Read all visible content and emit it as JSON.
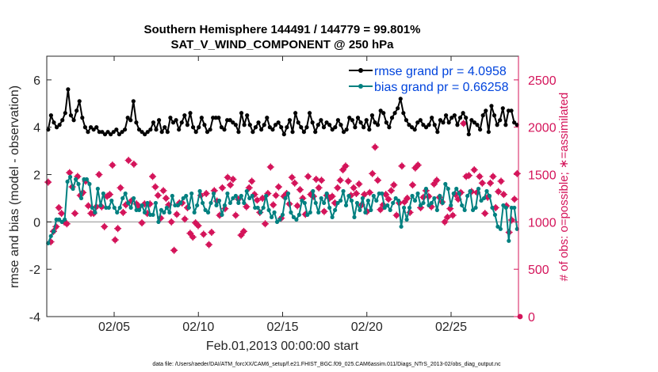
{
  "chart_data": {
    "type": "line",
    "title": "Southern Hemisphere 144491 / 144779 = 99.801%",
    "subtitle": "SAT_V_WIND_COMPONENT @ 250 hPa",
    "xlabel": "Feb.01,2013 00:00:00 start",
    "ylabel": "rmse and bias (model - observation)",
    "ylabel_right": "# of obs: o=possible; ∗=assimilated",
    "xlim": [
      1,
      29
    ],
    "ylim": [
      -4,
      7
    ],
    "ylim_right": [
      0,
      2750
    ],
    "xticks": [
      5,
      10,
      15,
      20,
      25
    ],
    "xtick_labels": [
      "02/05",
      "02/10",
      "02/15",
      "02/20",
      "02/25"
    ],
    "yticks": [
      -4,
      -2,
      0,
      2,
      4,
      6
    ],
    "yticks_right": [
      0,
      500,
      1000,
      1500,
      2000,
      2500
    ],
    "legend_position": "top-right",
    "footer": "data file: /Users/raeder/DAI/ATM_forcXX/CAM6_setup/f.e21.FHIST_BGC.f09_025.CAM6assim.011/Diags_NTrS_2013-02/obs_diag_output.nc",
    "series": [
      {
        "name": "rmse grand pr = 4.0958",
        "color": "#000000",
        "values": [
          3.9,
          4.5,
          4.2,
          4.0,
          4.1,
          4.3,
          4.6,
          5.6,
          4.5,
          4.3,
          4.7,
          5.1,
          4.4,
          4.0,
          3.8,
          4.0,
          3.9,
          4.0,
          3.8,
          3.8,
          3.7,
          3.8,
          3.7,
          3.8,
          3.9,
          3.7,
          3.8,
          3.9,
          4.4,
          4.3,
          5.1,
          4.2,
          3.9,
          3.8,
          3.7,
          3.8,
          3.9,
          4.2,
          3.9,
          4.3,
          3.8,
          4.0,
          3.8,
          4.4,
          4.2,
          4.3,
          3.9,
          4.2,
          4.5,
          4.1,
          4.6,
          4.0,
          3.8,
          4.0,
          4.4,
          4.1,
          3.8,
          3.9,
          4.4,
          4.4,
          4.4,
          4.0,
          3.9,
          4.3,
          4.3,
          4.2,
          4.1,
          3.8,
          4.6,
          4.1,
          4.5,
          4.1,
          3.8,
          4.0,
          4.2,
          3.9,
          4.1,
          4.4,
          4.0,
          3.9,
          4.1,
          4.2,
          4.0,
          3.7,
          4.0,
          4.3,
          3.8,
          4.6,
          4.2,
          4.0,
          3.8,
          4.0,
          4.6,
          4.2,
          3.8,
          4.1,
          4.3,
          4.0,
          4.2,
          4.1,
          3.9,
          4.0,
          4.3,
          4.1,
          3.8,
          3.9,
          4.4,
          4.3,
          4.0,
          4.4,
          4.2,
          4.0,
          4.3,
          3.9,
          4.5,
          4.2,
          4.1,
          4.7,
          4.6,
          4.2,
          4.0,
          4.4,
          4.6,
          4.8,
          5.2,
          4.6,
          4.3,
          4.1,
          4.0,
          3.9,
          4.2,
          4.3,
          4.1,
          4.0,
          4.1,
          4.4,
          4.1,
          3.8,
          4.3,
          4.2,
          4.5,
          4.2,
          4.4,
          4.5,
          4.1,
          4.4,
          4.6,
          4.4,
          3.7,
          4.3,
          4.2,
          4.1,
          3.9,
          4.5,
          4.7,
          3.8,
          4.9,
          4.5,
          4.1,
          4.3,
          4.8,
          4.1,
          4.7,
          4.7,
          4.2,
          4.1
        ],
        "values_note": ""
      },
      {
        "name": "bias grand pr = 0.66258",
        "color": "#008080",
        "values": [
          -0.9,
          -0.6,
          -0.4,
          0.1,
          0.1,
          0.0,
          0.1,
          1.7,
          1.9,
          1.4,
          1.8,
          1.6,
          1.0,
          1.8,
          1.8,
          1.6,
          0.6,
          0.4,
          1.4,
          0.7,
          1.2,
          0.6,
          0.6,
          0.9,
          0.6,
          0.4,
          0.6,
          1.0,
          1.2,
          0.8,
          0.6,
          1.0,
          0.5,
          0.5,
          0.7,
          0.4,
          0.8,
          0.3,
          0.3,
          0.8,
          0.0,
          0.5,
          0.4,
          0.6,
          0.4,
          1.1,
          0.7,
          0.7,
          0.8,
          1.0,
          1.1,
          0.6,
          1.2,
          0.4,
          0.7,
          1.3,
          0.8,
          0.5,
          0.4,
          0.8,
          1.2,
          0.7,
          0.9,
          0.3,
          0.7,
          1.2,
          0.8,
          1.0,
          1.1,
          0.8,
          1.1,
          0.8,
          1.3,
          1.0,
          1.1,
          0.6,
          0.6,
          0.4,
          0.6,
          1.1,
          0.5,
          0.2,
          0.4,
          0.0,
          0.1,
          0.3,
          1.0,
          1.2,
          0.4,
          0.2,
          0.1,
          0.3,
          0.9,
          0.8,
          0.3,
          0.4,
          1.3,
          0.8,
          0.4,
          1.0,
          0.8,
          1.2,
          0.6,
          0.2,
          0.5,
          0.8,
          0.9,
          1.3,
          0.7,
          1.1,
          0.9,
          0.2,
          0.8,
          0.5,
          1.0,
          0.4,
          0.9,
          0.5,
          1.1,
          0.9,
          1.2,
          1.2,
          0.6,
          0.7,
          0.5,
          0.8,
          1.0,
          0.9,
          -0.2,
          0.6,
          0.1,
          0.6,
          1.1,
          0.9,
          1.2,
          0.7,
          0.8,
          1.4,
          0.7,
          0.8,
          1.0,
          0.5,
          1.1,
          0.8,
          1.6,
          1.4,
          0.7,
          1.2,
          1.4,
          1.2,
          0.7,
          0.5,
          1.1,
          1.3,
          0.5,
          0.6,
          1.4,
          0.9,
          1.0,
          1.3,
          1.1,
          0.6,
          0.3,
          -0.2,
          -0.3,
          0.7,
          0.6,
          -0.8,
          0.6,
          0.6,
          -0.3
        ]
      },
      {
        "name": "obs possible",
        "color": "#d4145a",
        "axis": "right",
        "values": [
          1420,
          790,
          900,
          950,
          1150,
          1090,
          1000,
          980,
          1520,
          1370,
          1090,
          1480,
          1280,
          1310,
          1430,
          1170,
          1090,
          1090,
          1160,
          1500,
          1160,
          950,
          1270,
          1290,
          1600,
          810,
          930,
          1360,
          1100,
          1180,
          1650,
          1220,
          1610,
          1190,
          1160,
          990,
          1190,
          1090,
          1190,
          1480,
          1370,
          1280,
          1040,
          1330,
          1250,
          1180,
          1000,
          700,
          1080,
          1200,
          1200,
          1030,
          1150,
          880,
          840,
          990,
          960,
          1280,
          870,
          1300,
          760,
          890,
          1330,
          1220,
          1070,
          1360,
          1140,
          1470,
          1390,
          1450,
          1070,
          1240,
          860,
          900,
          1160,
          1360,
          1430,
          1290,
          1230,
          1100,
          1250,
          980,
          1300,
          1580,
          1180,
          1280,
          1370,
          1040,
          1270,
          1300,
          1190,
          1470,
          1410,
          1170,
          1340,
          1250,
          1080,
          1480,
          1290,
          1270,
          1450,
          1360,
          1440,
          1110,
          1280,
          1250,
          1270,
          1200,
          1360,
          1440,
          1550,
          1590,
          1430,
          1280,
          1360,
          1300,
          1400,
          1180,
          1290,
          1110,
          1310,
          1510,
          1790,
          1440,
          1130,
          1180,
          1290,
          1240,
          1330,
          1390,
          1070,
          1200,
          1590,
          1210,
          1250,
          1100,
          1390,
          1570,
          1600,
          1150,
          1260,
          1330,
          1270,
          1160,
          1400,
          1440,
          1260,
          1210,
          1000,
          1050,
          1140,
          1070,
          1290,
          1240,
          1310,
          2040,
          1480,
          1490,
          1320,
          1550,
          1310,
          1480,
          1410,
          1090,
          1260,
          1410,
          1480,
          1150,
          1320,
          1430,
          1290,
          1170,
          890,
          1020,
          1240,
          1510
        ]
      }
    ]
  }
}
